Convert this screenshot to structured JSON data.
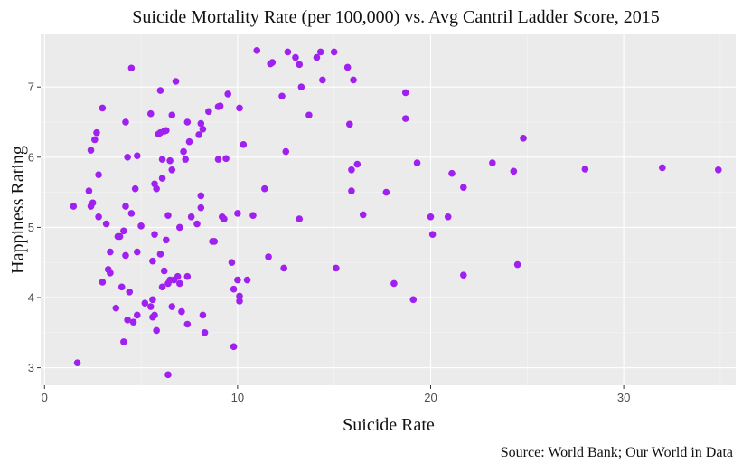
{
  "chart_data": {
    "type": "scatter",
    "title": "Suicide Mortality Rate (per 100,000) vs. Avg Cantril Ladder Score, 2015",
    "xlabel": "Suicide Rate",
    "ylabel": "Happiness Rating",
    "caption": "Source: World Bank; Our World in Data",
    "xlim": [
      -0.2,
      35.8
    ],
    "ylim": [
      2.75,
      7.75
    ],
    "x_ticks": [
      0,
      10,
      20,
      30
    ],
    "y_ticks": [
      3,
      4,
      5,
      6,
      7
    ],
    "grid": true,
    "point_color": "#a020f0",
    "panel_color": "#ebebeb",
    "points": [
      [
        1.5,
        5.3
      ],
      [
        1.7,
        3.07
      ],
      [
        2.3,
        5.52
      ],
      [
        2.4,
        6.1
      ],
      [
        2.5,
        5.35
      ],
      [
        2.4,
        5.3
      ],
      [
        2.6,
        6.25
      ],
      [
        2.7,
        6.35
      ],
      [
        2.8,
        5.75
      ],
      [
        2.8,
        5.15
      ],
      [
        3.0,
        6.7
      ],
      [
        3.0,
        4.22
      ],
      [
        3.2,
        5.05
      ],
      [
        3.3,
        4.4
      ],
      [
        3.4,
        4.35
      ],
      [
        3.4,
        4.65
      ],
      [
        3.7,
        3.85
      ],
      [
        3.8,
        4.87
      ],
      [
        3.9,
        4.87
      ],
      [
        4.0,
        4.15
      ],
      [
        4.1,
        3.37
      ],
      [
        4.1,
        4.95
      ],
      [
        4.2,
        6.5
      ],
      [
        4.2,
        5.3
      ],
      [
        4.2,
        4.6
      ],
      [
        4.3,
        6.0
      ],
      [
        4.3,
        3.68
      ],
      [
        4.4,
        4.08
      ],
      [
        4.5,
        7.27
      ],
      [
        4.5,
        5.2
      ],
      [
        4.6,
        3.65
      ],
      [
        4.7,
        5.55
      ],
      [
        4.8,
        6.02
      ],
      [
        4.8,
        3.75
      ],
      [
        4.8,
        4.65
      ],
      [
        5.0,
        5.02
      ],
      [
        5.2,
        3.92
      ],
      [
        5.5,
        3.87
      ],
      [
        5.5,
        6.62
      ],
      [
        5.6,
        3.72
      ],
      [
        5.7,
        4.9
      ],
      [
        5.7,
        5.62
      ],
      [
        5.6,
        4.52
      ],
      [
        5.6,
        3.97
      ],
      [
        5.7,
        3.75
      ],
      [
        5.8,
        5.55
      ],
      [
        5.8,
        3.53
      ],
      [
        5.9,
        6.33
      ],
      [
        6.0,
        6.95
      ],
      [
        6.0,
        6.35
      ],
      [
        6.0,
        4.62
      ],
      [
        6.1,
        4.15
      ],
      [
        6.1,
        5.97
      ],
      [
        6.1,
        5.7
      ],
      [
        6.2,
        6.37
      ],
      [
        6.2,
        4.38
      ],
      [
        6.3,
        4.82
      ],
      [
        6.3,
        6.38
      ],
      [
        6.4,
        4.2
      ],
      [
        6.4,
        2.9
      ],
      [
        6.4,
        5.17
      ],
      [
        6.5,
        5.95
      ],
      [
        6.5,
        4.25
      ],
      [
        6.6,
        5.82
      ],
      [
        6.6,
        6.6
      ],
      [
        6.7,
        4.25
      ],
      [
        6.6,
        3.87
      ],
      [
        6.8,
        7.08
      ],
      [
        6.9,
        4.3
      ],
      [
        7.0,
        5.0
      ],
      [
        7.0,
        4.2
      ],
      [
        7.1,
        3.8
      ],
      [
        7.2,
        6.08
      ],
      [
        7.3,
        5.97
      ],
      [
        7.4,
        6.5
      ],
      [
        7.4,
        4.3
      ],
      [
        7.4,
        3.62
      ],
      [
        7.5,
        6.22
      ],
      [
        7.6,
        5.15
      ],
      [
        7.9,
        5.05
      ],
      [
        8.0,
        6.32
      ],
      [
        8.1,
        5.45
      ],
      [
        8.1,
        5.28
      ],
      [
        8.1,
        6.48
      ],
      [
        8.2,
        6.4
      ],
      [
        8.2,
        3.75
      ],
      [
        8.3,
        3.5
      ],
      [
        8.5,
        6.65
      ],
      [
        8.7,
        4.8
      ],
      [
        8.8,
        4.8
      ],
      [
        9.0,
        6.72
      ],
      [
        9.0,
        5.97
      ],
      [
        9.1,
        6.73
      ],
      [
        9.2,
        5.15
      ],
      [
        9.3,
        5.12
      ],
      [
        9.4,
        5.98
      ],
      [
        9.5,
        6.9
      ],
      [
        9.7,
        4.5
      ],
      [
        9.8,
        4.12
      ],
      [
        9.8,
        3.3
      ],
      [
        10.0,
        4.25
      ],
      [
        10.0,
        5.2
      ],
      [
        10.1,
        6.7
      ],
      [
        10.1,
        3.95
      ],
      [
        10.1,
        4.02
      ],
      [
        10.3,
        6.18
      ],
      [
        10.5,
        4.25
      ],
      [
        10.8,
        5.17
      ],
      [
        11.0,
        7.52
      ],
      [
        11.4,
        5.55
      ],
      [
        11.6,
        4.58
      ],
      [
        11.7,
        7.33
      ],
      [
        11.8,
        7.35
      ],
      [
        12.3,
        6.87
      ],
      [
        12.4,
        4.42
      ],
      [
        12.5,
        6.08
      ],
      [
        12.6,
        7.5
      ],
      [
        13.0,
        7.42
      ],
      [
        13.2,
        7.32
      ],
      [
        13.2,
        5.12
      ],
      [
        13.3,
        7.0
      ],
      [
        13.7,
        6.6
      ],
      [
        14.1,
        7.42
      ],
      [
        14.3,
        7.5
      ],
      [
        14.4,
        7.1
      ],
      [
        15.0,
        7.5
      ],
      [
        15.1,
        4.42
      ],
      [
        15.7,
        7.28
      ],
      [
        15.8,
        6.47
      ],
      [
        15.9,
        5.82
      ],
      [
        15.9,
        5.52
      ],
      [
        16.0,
        7.1
      ],
      [
        16.2,
        5.9
      ],
      [
        16.5,
        5.18
      ],
      [
        17.7,
        5.5
      ],
      [
        18.1,
        4.2
      ],
      [
        18.7,
        6.92
      ],
      [
        18.7,
        6.55
      ],
      [
        19.1,
        3.97
      ],
      [
        19.3,
        5.92
      ],
      [
        20.0,
        5.15
      ],
      [
        20.1,
        4.9
      ],
      [
        20.9,
        5.15
      ],
      [
        21.1,
        5.77
      ],
      [
        21.7,
        5.57
      ],
      [
        21.7,
        4.32
      ],
      [
        23.2,
        5.92
      ],
      [
        24.3,
        5.8
      ],
      [
        24.5,
        4.47
      ],
      [
        24.8,
        6.27
      ],
      [
        28.0,
        5.83
      ],
      [
        32.0,
        5.85
      ],
      [
        34.9,
        5.82
      ]
    ]
  }
}
